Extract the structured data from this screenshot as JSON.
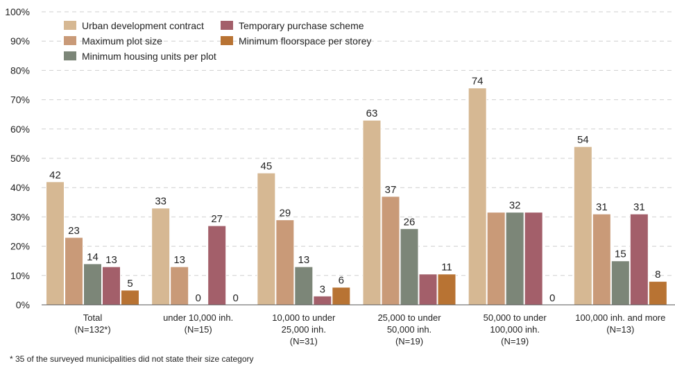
{
  "chart_data": {
    "type": "bar",
    "title": "",
    "xlabel": "",
    "ylabel": "",
    "ylim": [
      0,
      100
    ],
    "yticks": [
      "0%",
      "10%",
      "20%",
      "30%",
      "40%",
      "50%",
      "60%",
      "70%",
      "80%",
      "90%",
      "100%"
    ],
    "grid": true,
    "legend_position": "top-left",
    "categories": [
      [
        "Total",
        "(N=132*)"
      ],
      [
        "under 10,000 inh.",
        "(N=15)"
      ],
      [
        "10,000 to under",
        "25,000 inh.",
        "(N=31)"
      ],
      [
        "25,000 to under",
        "50,000 inh.",
        "(N=19)"
      ],
      [
        "50,000 to under",
        "100,000 inh.",
        "(N=19)"
      ],
      [
        "100,000 inh. and more",
        "(N=13)"
      ]
    ],
    "series": [
      {
        "name": "Urban development contract",
        "color": "#d6b893",
        "values": [
          42,
          33,
          45,
          63,
          74,
          54
        ],
        "labels": [
          "42",
          "33",
          "45",
          "63",
          "74",
          "54"
        ]
      },
      {
        "name": "Maximum plot size",
        "color": "#c99a78",
        "values": [
          23,
          13,
          29,
          37,
          31.6,
          31
        ],
        "labels": [
          "23",
          "13",
          "29",
          "37",
          "",
          "31"
        ]
      },
      {
        "name": "Minimum housing units per plot",
        "color": "#7c8678",
        "values": [
          14,
          0,
          13,
          26,
          31.6,
          15
        ],
        "labels": [
          "14",
          "0",
          "13",
          "26",
          "32",
          "15"
        ]
      },
      {
        "name": "Temporary purchase scheme",
        "color": "#a35f6a",
        "values": [
          13,
          27,
          3,
          10.5,
          31.6,
          31
        ],
        "labels": [
          "13",
          "27",
          "3",
          "",
          "",
          "31"
        ]
      },
      {
        "name": "Minimum floorspace per storey",
        "color": "#b87333",
        "values": [
          5,
          0,
          6,
          10.5,
          0,
          8
        ],
        "labels": [
          "5",
          "0",
          "6",
          "11",
          "0",
          "8"
        ]
      }
    ],
    "legend_rows": [
      [
        "Urban development contract",
        "Temporary purchase scheme"
      ],
      [
        "Maximum plot size",
        "Minimum floorspace per storey"
      ],
      [
        "Minimum housing units per plot"
      ]
    ]
  },
  "footnote": "* 35 of the surveyed municipalities did not state their size category"
}
